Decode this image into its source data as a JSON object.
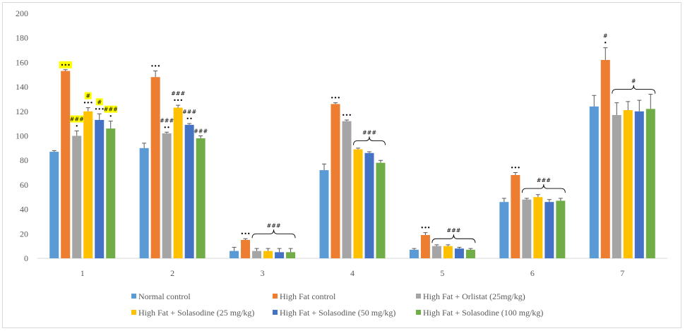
{
  "chart_data": {
    "type": "bar",
    "categories": [
      "1",
      "2",
      "3",
      "4",
      "5",
      "6",
      "7"
    ],
    "ylim": [
      0,
      200
    ],
    "yticks": [
      0,
      20,
      40,
      60,
      80,
      100,
      120,
      140,
      160,
      180,
      200
    ],
    "grid": false,
    "legend_position": "bottom",
    "series": [
      {
        "name": "Normal control",
        "color": "#5b9bd5",
        "values": [
          87,
          90,
          6,
          72,
          7,
          46,
          124
        ],
        "errors": [
          1,
          4,
          3,
          5,
          1,
          3,
          9
        ]
      },
      {
        "name": "High Fat control",
        "color": "#ed7d31",
        "values": [
          153,
          148,
          15,
          126,
          19,
          68,
          162
        ],
        "errors": [
          1,
          5,
          1,
          1,
          2,
          2,
          10
        ]
      },
      {
        "name": "High Fat + Orlistat  (25mg/kg)",
        "color": "#a5a5a5",
        "values": [
          100,
          102,
          6,
          112,
          10,
          48,
          117
        ],
        "errors": [
          4,
          1,
          2,
          1,
          1,
          1,
          10
        ]
      },
      {
        "name": "High Fat + Solasodine (25 mg/kg)",
        "color": "#ffc000",
        "values": [
          120,
          123,
          6,
          89,
          10,
          50,
          121
        ],
        "errors": [
          3,
          2,
          2,
          1,
          1,
          2,
          7
        ]
      },
      {
        "name": "High Fat + Solasodine (50 mg/kg)",
        "color": "#4472c4",
        "values": [
          113,
          109,
          5,
          86,
          8,
          46,
          120
        ],
        "errors": [
          5,
          1,
          3,
          1,
          1,
          2,
          9
        ]
      },
      {
        "name": "High Fat + Solasodine (100 mg/kg)",
        "color": "#70ad47",
        "values": [
          106,
          98,
          5,
          78,
          7,
          47,
          122
        ],
        "errors": [
          6,
          2,
          3,
          2,
          1,
          2,
          12
        ]
      }
    ],
    "annotations": [
      {
        "category": 0,
        "series": 1,
        "text": "•••",
        "highlight": true
      },
      {
        "category": 0,
        "series": 2,
        "text": "•"
      },
      {
        "category": 0,
        "series": 2,
        "text": "###",
        "highlight": true
      },
      {
        "category": 0,
        "series": 3,
        "text": "•••"
      },
      {
        "category": 0,
        "series": 3,
        "text": "#",
        "highlight": true
      },
      {
        "category": 0,
        "series": 4,
        "text": "•••"
      },
      {
        "category": 0,
        "series": 4,
        "text": "#",
        "highlight": true
      },
      {
        "category": 0,
        "series": 5,
        "text": "•"
      },
      {
        "category": 0,
        "series": 5,
        "text": "###",
        "highlight": true
      },
      {
        "category": 1,
        "series": 1,
        "text": "•••"
      },
      {
        "category": 1,
        "series": 2,
        "text": "••"
      },
      {
        "category": 1,
        "series": 2,
        "text": "###"
      },
      {
        "category": 1,
        "series": 3,
        "text": "•••"
      },
      {
        "category": 1,
        "series": 3,
        "text": "###"
      },
      {
        "category": 1,
        "series": 4,
        "text": "••"
      },
      {
        "category": 1,
        "series": 4,
        "text": "###"
      },
      {
        "category": 1,
        "series": 5,
        "text": "###"
      },
      {
        "category": 2,
        "series": 1,
        "text": "•••"
      },
      {
        "category": 3,
        "series": 1,
        "text": "•••"
      },
      {
        "category": 3,
        "series": 2,
        "text": "•••"
      },
      {
        "category": 4,
        "series": 1,
        "text": "•••"
      },
      {
        "category": 5,
        "series": 1,
        "text": "•••"
      },
      {
        "category": 6,
        "series": 1,
        "text": "•"
      },
      {
        "category": 6,
        "series": 1,
        "text": "#"
      }
    ],
    "brackets": [
      {
        "category": 2,
        "from_series": 2,
        "to_series": 5,
        "value": 20,
        "text": "###"
      },
      {
        "category": 3,
        "from_series": 3,
        "to_series": 5,
        "value": 96,
        "text": "###"
      },
      {
        "category": 4,
        "from_series": 2,
        "to_series": 5,
        "value": 16,
        "text": "###"
      },
      {
        "category": 5,
        "from_series": 2,
        "to_series": 5,
        "value": 57,
        "text": "###"
      },
      {
        "category": 6,
        "from_series": 2,
        "to_series": 5,
        "value": 138,
        "text": "#"
      }
    ]
  }
}
